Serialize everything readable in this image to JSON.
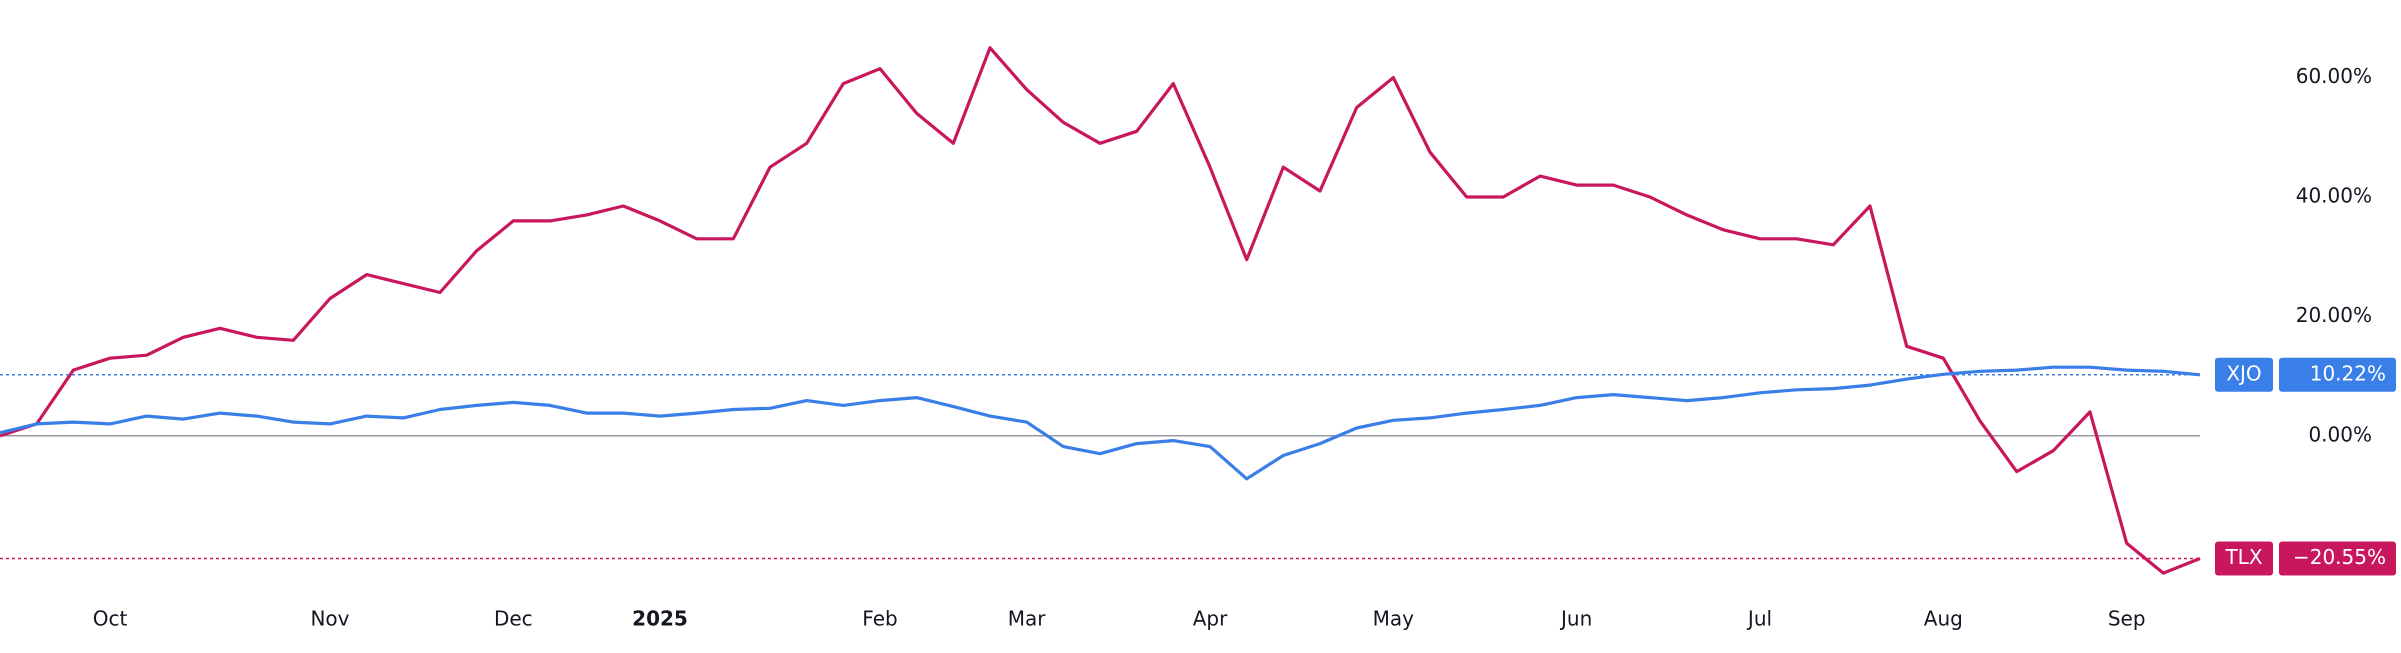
{
  "chart_data": {
    "type": "line",
    "categories": [
      null,
      null,
      null,
      "Oct",
      null,
      null,
      null,
      null,
      null,
      "Nov",
      null,
      null,
      null,
      null,
      "Dec",
      null,
      null,
      null,
      "2025",
      null,
      null,
      null,
      null,
      null,
      "Feb",
      null,
      null,
      null,
      "Mar",
      null,
      null,
      null,
      null,
      "Apr",
      null,
      null,
      null,
      null,
      "May",
      null,
      null,
      null,
      null,
      "Jun",
      null,
      null,
      null,
      null,
      "Jul",
      null,
      null,
      null,
      null,
      "Aug",
      null,
      null,
      null,
      null,
      "Sep",
      null,
      null
    ],
    "series": [
      {
        "name": "TLX",
        "color": "#c8175d",
        "values": [
          0,
          2,
          11,
          13,
          13.5,
          16.5,
          18,
          16.5,
          16,
          23,
          27,
          25.5,
          24,
          31,
          36,
          36,
          37,
          38.5,
          36,
          33,
          33,
          45,
          49,
          59,
          61.5,
          54,
          49,
          65,
          58,
          52.5,
          49,
          51,
          59,
          45,
          29.5,
          45,
          41,
          55,
          60,
          47.5,
          40,
          40,
          43.5,
          42,
          42,
          40,
          37,
          34.5,
          33,
          33,
          32,
          38.5,
          15,
          13,
          2.5,
          -6,
          -2.5,
          4,
          -18,
          -23,
          -20.55
        ],
        "value_labels": [
          null,
          null,
          null,
          null,
          null,
          null,
          null,
          null,
          null,
          null,
          null,
          null,
          null,
          null,
          null,
          null,
          null,
          null,
          null,
          null,
          null,
          null,
          null,
          null,
          null,
          null,
          null,
          null,
          null,
          null,
          null,
          null,
          null,
          null,
          null,
          null,
          null,
          null,
          null,
          null,
          null,
          null,
          null,
          null,
          null,
          null,
          null,
          null,
          null,
          null,
          null,
          null,
          null,
          null,
          null,
          null,
          null,
          null,
          null,
          null,
          "−20.55%"
        ]
      },
      {
        "name": "XJO",
        "color": "#3a7ee8",
        "values": [
          0.5,
          2,
          2.3,
          2,
          3.3,
          2.8,
          3.8,
          3.3,
          2.3,
          2,
          3.3,
          3,
          4.4,
          5.1,
          5.6,
          5.1,
          3.8,
          3.8,
          3.3,
          3.8,
          4.4,
          4.6,
          5.9,
          5.1,
          5.9,
          6.4,
          4.9,
          3.3,
          2.3,
          -1.8,
          -3,
          -1.3,
          -0.8,
          -1.8,
          -7.2,
          -3.3,
          -1.3,
          1.3,
          2.6,
          3,
          3.8,
          4.4,
          5.1,
          6.4,
          6.9,
          6.4,
          5.9,
          6.4,
          7.2,
          7.7,
          7.9,
          8.5,
          9.5,
          10.3,
          10.8,
          11,
          11.5,
          11.5,
          11,
          10.8,
          10.22
        ],
        "value_labels": [
          null,
          null,
          null,
          null,
          null,
          null,
          null,
          null,
          null,
          null,
          null,
          null,
          null,
          null,
          null,
          null,
          null,
          null,
          null,
          null,
          null,
          null,
          null,
          null,
          null,
          null,
          null,
          null,
          null,
          null,
          null,
          null,
          null,
          null,
          null,
          null,
          null,
          null,
          null,
          null,
          null,
          null,
          null,
          null,
          null,
          null,
          null,
          null,
          null,
          null,
          null,
          null,
          null,
          null,
          null,
          null,
          null,
          null,
          null,
          null,
          "10.22%"
        ]
      }
    ],
    "ylim": [
      -27,
      73
    ],
    "yticks": [
      {
        "value": 0,
        "label": "0.00%"
      },
      {
        "value": 20,
        "label": "20.00%"
      },
      {
        "value": 40,
        "label": "40.00%"
      },
      {
        "value": 60,
        "label": "60.00%"
      }
    ]
  }
}
